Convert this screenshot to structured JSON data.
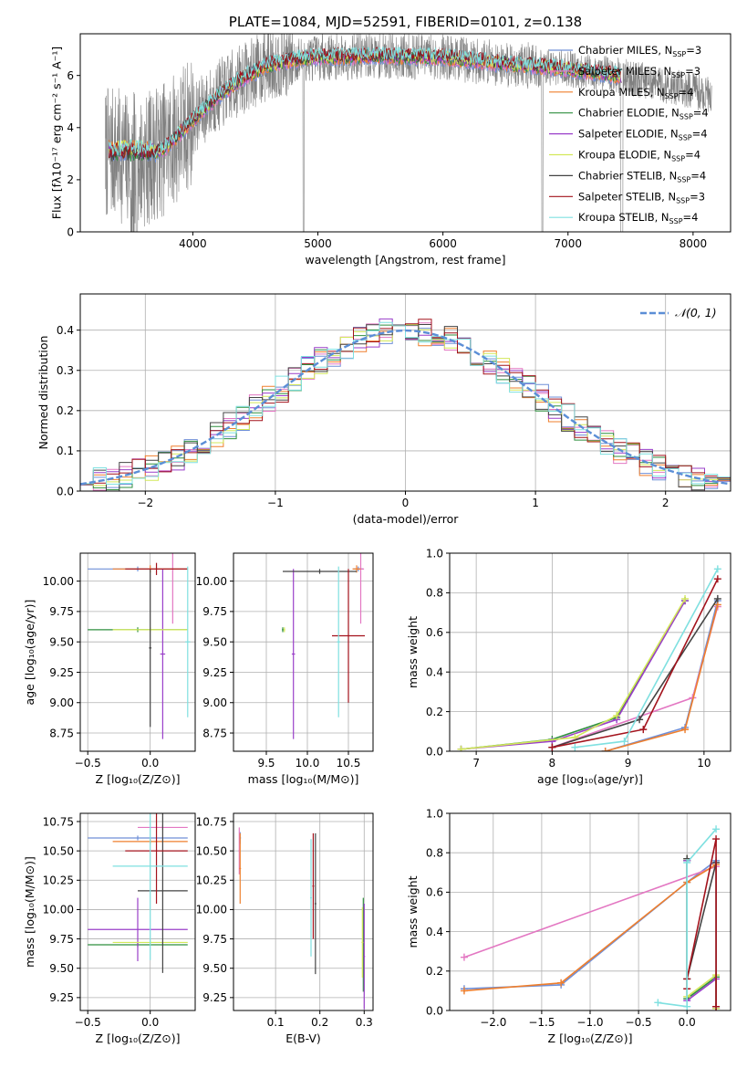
{
  "colors": {
    "Chabrier MILES": "#6f8fd8",
    "Salpeter MILES": "#e377c2",
    "Kroupa MILES": "#ef7f2d",
    "Chabrier ELODIE": "#2f8f3f",
    "Salpeter ELODIE": "#9a3fc9",
    "Kroupa ELODIE": "#d3e85a",
    "Chabrier STELIB": "#444444",
    "Salpeter STELIB": "#a3121c",
    "Kroupa STELIB": "#7fe0e0",
    "observed": "#808080",
    "normal": "#5b8ed6"
  },
  "chart_data": [
    {
      "id": "spectrum",
      "type": "line",
      "title": "PLATE=1084, MJD=52591, FIBERID=0101, z=0.138",
      "xlabel": "wavelength [Angstrom, rest frame]",
      "ylabel": "Flux [fλ10⁻¹⁷ erg cm⁻² s⁻¹ A⁻¹]",
      "xlim": [
        3100,
        8300
      ],
      "ylim": [
        0,
        7.6
      ],
      "xticks": [
        4000,
        5000,
        6000,
        7000,
        8000
      ],
      "yticks": [
        0,
        2,
        4,
        6
      ],
      "grid": false,
      "legend_position": "top-right",
      "legend": [
        {
          "label": "Chabrier MILES, N",
          "sub": "SSP",
          "rest": "=3"
        },
        {
          "label": "Salpeter MILES, N",
          "sub": "SSP",
          "rest": "=3"
        },
        {
          "label": "Kroupa MILES, N",
          "sub": "SSP",
          "rest": "=4"
        },
        {
          "label": "Chabrier ELODIE, N",
          "sub": "SSP",
          "rest": "=4"
        },
        {
          "label": "Salpeter ELODIE, N",
          "sub": "SSP",
          "rest": "=4"
        },
        {
          "label": "Kroupa ELODIE, N",
          "sub": "SSP",
          "rest": "=4"
        },
        {
          "label": "Chabrier STELIB, N",
          "sub": "SSP",
          "rest": "=4"
        },
        {
          "label": "Salpeter STELIB, N",
          "sub": "SSP",
          "rest": "=3"
        },
        {
          "label": "Kroupa STELIB, N",
          "sub": "SSP",
          "rest": "=4"
        }
      ],
      "continuum": {
        "x": [
          3350,
          3600,
          3800,
          4000,
          4200,
          4400,
          4600,
          4800,
          5000,
          5500,
          6000,
          6500,
          7000,
          7400,
          7800,
          8100
        ],
        "y": [
          3.0,
          2.7,
          3.3,
          4.3,
          5.2,
          5.9,
          6.4,
          6.6,
          6.7,
          6.75,
          6.7,
          6.45,
          6.25,
          6.0,
          5.6,
          5.3
        ]
      },
      "data_range": [
        3300,
        8150
      ],
      "model_range": [
        3330,
        7430
      ]
    },
    {
      "id": "residuals",
      "type": "histogram",
      "xlabel": "(data-model)/error",
      "ylabel": "Normed distribution",
      "xlim": [
        -2.5,
        2.5
      ],
      "ylim": [
        0,
        0.49
      ],
      "xticks": [
        -2,
        -1,
        0,
        1,
        2
      ],
      "yticks": [
        0,
        0.1,
        0.2,
        0.3,
        0.4
      ],
      "grid": true,
      "legend_position": "top-right",
      "legend_label": "𝒩(0, 1)",
      "bin_width": 0.1,
      "reference": {
        "type": "normal",
        "mean": 0,
        "sigma": 1
      }
    },
    {
      "id": "z-age",
      "type": "errorbar",
      "xlabel": "Z [log₁₀(Z/Z⊙)]",
      "ylabel": "age  [log₁₀(age/yr)]",
      "xlim": [
        -0.56,
        0.36
      ],
      "ylim": [
        8.6,
        10.23
      ],
      "xticks": [
        -0.5,
        0.0,
        0.5
      ],
      "yticks": [
        8.75,
        9.0,
        9.25,
        9.5,
        9.75,
        10.0
      ],
      "grid": true,
      "points": [
        {
          "model": "Chabrier MILES",
          "x": -0.1,
          "xerr": 0.4,
          "y": 10.1,
          "yerr": 0.02
        },
        {
          "model": "Salpeter MILES",
          "x": 0.18,
          "xerr": 0.12,
          "y": 10.1,
          "yerr": 0.45
        },
        {
          "model": "Kroupa MILES",
          "x": 0.0,
          "xerr": 0.3,
          "y": 10.1,
          "yerr": 0.03
        },
        {
          "model": "Chabrier ELODIE",
          "x": -0.1,
          "xerr": 0.4,
          "y": 9.6,
          "yerr": 0.02
        },
        {
          "model": "Salpeter ELODIE",
          "x": 0.1,
          "xerr": 0.02,
          "y": 9.4,
          "yerr": 0.7
        },
        {
          "model": "Kroupa ELODIE",
          "x": 0.0,
          "xerr": 0.3,
          "y": 9.6,
          "yerr": 0.02
        },
        {
          "model": "Chabrier STELIB",
          "x": 0.0,
          "xerr": 0.01,
          "y": 9.45,
          "yerr": 0.65
        },
        {
          "model": "Salpeter STELIB",
          "x": 0.05,
          "xerr": 0.25,
          "y": 10.1,
          "yerr": 0.05
        },
        {
          "model": "Kroupa STELIB",
          "x": 0.3,
          "xerr": 0.02,
          "y": 9.5,
          "yerr": 0.62
        }
      ]
    },
    {
      "id": "mass-age",
      "type": "errorbar",
      "xlabel": "mass [log₁₀(M/M⊙)]",
      "ylabel": "",
      "xlim": [
        9.1,
        10.8
      ],
      "ylim": [
        8.6,
        10.23
      ],
      "xticks": [
        9.5,
        10.0,
        10.5
      ],
      "yticks": [
        8.75,
        9.0,
        9.25,
        9.5,
        9.75,
        10.0
      ],
      "grid": true,
      "points": [
        {
          "model": "Chabrier MILES",
          "x": 10.62,
          "xerr": 0.06,
          "y": 10.1,
          "yerr": 0.02
        },
        {
          "model": "Salpeter MILES",
          "x": 10.65,
          "xerr": 0.04,
          "y": 10.1,
          "yerr": 0.45
        },
        {
          "model": "Kroupa MILES",
          "x": 10.6,
          "xerr": 0.05,
          "y": 10.1,
          "yerr": 0.03
        },
        {
          "model": "Chabrier ELODIE",
          "x": 9.7,
          "xerr": 0.01,
          "y": 9.6,
          "yerr": 0.02
        },
        {
          "model": "Salpeter ELODIE",
          "x": 9.83,
          "xerr": 0.02,
          "y": 9.4,
          "yerr": 0.7
        },
        {
          "model": "Kroupa ELODIE",
          "x": 9.72,
          "xerr": 0.01,
          "y": 9.6,
          "yerr": 0.02
        },
        {
          "model": "Chabrier STELIB",
          "x": 10.15,
          "xerr": 0.45,
          "y": 10.08,
          "yerr": 0.02
        },
        {
          "model": "Salpeter STELIB",
          "x": 10.5,
          "xerr": 0.2,
          "y": 9.55,
          "yerr": 0.55
        },
        {
          "model": "Kroupa STELIB",
          "x": 10.38,
          "xerr": 0.02,
          "y": 9.5,
          "yerr": 0.62
        }
      ]
    },
    {
      "id": "age-weight",
      "type": "line",
      "xlabel": "age  [log₁₀(age/yr)]",
      "ylabel": "mass weight",
      "xlim": [
        6.65,
        10.35
      ],
      "ylim": [
        0,
        1.0
      ],
      "xticks": [
        7,
        8,
        9,
        10
      ],
      "yticks": [
        0.0,
        0.2,
        0.4,
        0.6,
        0.8,
        1.0
      ],
      "grid": true,
      "series": [
        {
          "model": "Chabrier MILES",
          "x": [
            8.7,
            9.75,
            10.18
          ],
          "y": [
            0.0,
            0.12,
            0.76
          ]
        },
        {
          "model": "Salpeter MILES",
          "x": [
            8.0,
            9.85,
            10.18
          ],
          "y": [
            0.02,
            0.27,
            0.73
          ]
        },
        {
          "model": "Kroupa MILES",
          "x": [
            8.7,
            9.75,
            10.18
          ],
          "y": [
            0.0,
            0.11,
            0.74
          ]
        },
        {
          "model": "Chabrier ELODIE",
          "x": [
            6.8,
            8.0,
            8.85,
            9.75
          ],
          "y": [
            0.01,
            0.06,
            0.17,
            0.76
          ]
        },
        {
          "model": "Salpeter ELODIE",
          "x": [
            6.8,
            8.0,
            8.85,
            9.75
          ],
          "y": [
            0.01,
            0.05,
            0.16,
            0.76
          ]
        },
        {
          "model": "Kroupa ELODIE",
          "x": [
            6.8,
            8.3,
            8.85,
            9.75
          ],
          "y": [
            0.01,
            0.07,
            0.18,
            0.77
          ]
        },
        {
          "model": "Chabrier STELIB",
          "x": [
            8.0,
            9.15,
            10.18
          ],
          "y": [
            0.02,
            0.16,
            0.77
          ]
        },
        {
          "model": "Salpeter STELIB",
          "x": [
            8.0,
            9.2,
            10.18
          ],
          "y": [
            0.02,
            0.11,
            0.87
          ]
        },
        {
          "model": "Kroupa STELIB",
          "x": [
            8.3,
            8.95,
            10.18
          ],
          "y": [
            0.02,
            0.05,
            0.92
          ]
        }
      ]
    },
    {
      "id": "z-mass",
      "type": "errorbar",
      "xlabel": "Z [log₁₀(Z/Z⊙)]",
      "ylabel": "mass [log₁₀(M/M⊙)]",
      "xlim": [
        -0.56,
        0.36
      ],
      "ylim": [
        9.14,
        10.82
      ],
      "xticks": [
        -0.5,
        0.0,
        0.5
      ],
      "yticks": [
        9.25,
        9.5,
        9.75,
        10.0,
        10.25,
        10.5,
        10.75
      ],
      "grid": true,
      "points": [
        {
          "model": "Chabrier MILES",
          "x": -0.1,
          "xerr": 0.4,
          "y": 10.61,
          "yerr": 0.02
        },
        {
          "model": "Salpeter MILES",
          "x": 0.1,
          "xerr": 0.2,
          "y": 10.7,
          "yerr": 0.02
        },
        {
          "model": "Kroupa MILES",
          "x": 0.0,
          "xerr": 0.3,
          "y": 10.58,
          "yerr": 0.02
        },
        {
          "model": "Chabrier ELODIE",
          "x": -0.1,
          "xerr": 0.4,
          "y": 9.7,
          "yerr": 0.02
        },
        {
          "model": "Salpeter ELODIE",
          "x": -0.1,
          "xerr": 0.4,
          "y": 9.83,
          "yerr": 0.27
        },
        {
          "model": "Kroupa ELODIE",
          "x": 0.0,
          "xerr": 0.3,
          "y": 9.72,
          "yerr": 0.02
        },
        {
          "model": "Chabrier STELIB",
          "x": 0.1,
          "xerr": 0.2,
          "y": 10.16,
          "yerr": 0.7
        },
        {
          "model": "Salpeter STELIB",
          "x": 0.05,
          "xerr": 0.25,
          "y": 10.5,
          "yerr": 0.45
        },
        {
          "model": "Kroupa STELIB",
          "x": 0.0,
          "xerr": 0.3,
          "y": 10.37,
          "yerr": 0.8
        }
      ]
    },
    {
      "id": "ebv-mass",
      "type": "errorbar",
      "xlabel": "E(B-V)",
      "ylabel": "",
      "xlim": [
        0.005,
        0.32
      ],
      "ylim": [
        9.14,
        10.82
      ],
      "xticks": [
        0.1,
        0.2,
        0.3
      ],
      "yticks": [
        9.25,
        9.5,
        9.75,
        10.0,
        10.25,
        10.5,
        10.75
      ],
      "grid": true,
      "points": [
        {
          "model": "Chabrier MILES",
          "x": 0.02,
          "xerr": 0.002,
          "y": 10.61,
          "yerr": 0.05
        },
        {
          "model": "Salpeter MILES",
          "x": 0.018,
          "xerr": 0.002,
          "y": 10.5,
          "yerr": 0.2
        },
        {
          "model": "Kroupa MILES",
          "x": 0.02,
          "xerr": 0.002,
          "y": 10.35,
          "yerr": 0.3
        },
        {
          "model": "Chabrier ELODIE",
          "x": 0.298,
          "xerr": 0.002,
          "y": 9.7,
          "yerr": 0.4
        },
        {
          "model": "Salpeter ELODIE",
          "x": 0.3,
          "xerr": 0.002,
          "y": 9.6,
          "yerr": 0.45
        },
        {
          "model": "Kroupa ELODIE",
          "x": 0.296,
          "xerr": 0.002,
          "y": 9.72,
          "yerr": 0.3
        },
        {
          "model": "Chabrier STELIB",
          "x": 0.19,
          "xerr": 0.002,
          "y": 10.05,
          "yerr": 0.6
        },
        {
          "model": "Salpeter STELIB",
          "x": 0.185,
          "xerr": 0.002,
          "y": 10.2,
          "yerr": 0.45
        },
        {
          "model": "Kroupa STELIB",
          "x": 0.18,
          "xerr": 0.002,
          "y": 10.1,
          "yerr": 0.5
        }
      ]
    },
    {
      "id": "z-weight",
      "type": "line",
      "xlabel": "Z [log₁₀(Z/Z⊙)]",
      "ylabel": "mass weight",
      "xlim": [
        -2.45,
        0.45
      ],
      "ylim": [
        0,
        1.0
      ],
      "xticks": [
        -2.0,
        -1.5,
        -1.0,
        -0.5,
        0.0
      ],
      "yticks": [
        0.0,
        0.2,
        0.4,
        0.6,
        0.8,
        1.0
      ],
      "grid": true,
      "series": [
        {
          "model": "Chabrier MILES",
          "x": [
            -2.3,
            -1.3,
            0.0,
            0.3
          ],
          "y": [
            0.11,
            0.13,
            0.65,
            0.76
          ]
        },
        {
          "model": "Salpeter MILES",
          "x": [
            -2.3,
            0.3
          ],
          "y": [
            0.27,
            0.73
          ]
        },
        {
          "model": "Kroupa MILES",
          "x": [
            -2.3,
            -1.3,
            0.0,
            0.3
          ],
          "y": [
            0.1,
            0.14,
            0.65,
            0.74
          ]
        },
        {
          "model": "Chabrier ELODIE",
          "x": [
            0.0,
            0.0,
            0.3,
            0.3
          ],
          "y": [
            0.76,
            0.06,
            0.17,
            0.01
          ]
        },
        {
          "model": "Salpeter ELODIE",
          "x": [
            0.0,
            0.0,
            0.3,
            0.3
          ],
          "y": [
            0.76,
            0.05,
            0.16,
            0.01
          ]
        },
        {
          "model": "Kroupa ELODIE",
          "x": [
            0.0,
            0.0,
            0.3,
            0.3
          ],
          "y": [
            0.77,
            0.07,
            0.18,
            0.01
          ]
        },
        {
          "model": "Chabrier STELIB",
          "x": [
            0.0,
            0.0,
            0.3,
            0.3
          ],
          "y": [
            0.77,
            0.16,
            0.75,
            0.02
          ]
        },
        {
          "model": "Salpeter STELIB",
          "x": [
            0.0,
            0.0,
            0.3,
            0.3
          ],
          "y": [
            0.11,
            0.16,
            0.87,
            0.02
          ]
        },
        {
          "model": "Kroupa STELIB",
          "x": [
            -0.3,
            0.0,
            0.0,
            0.3
          ],
          "y": [
            0.04,
            0.02,
            0.75,
            0.92
          ]
        }
      ]
    }
  ]
}
